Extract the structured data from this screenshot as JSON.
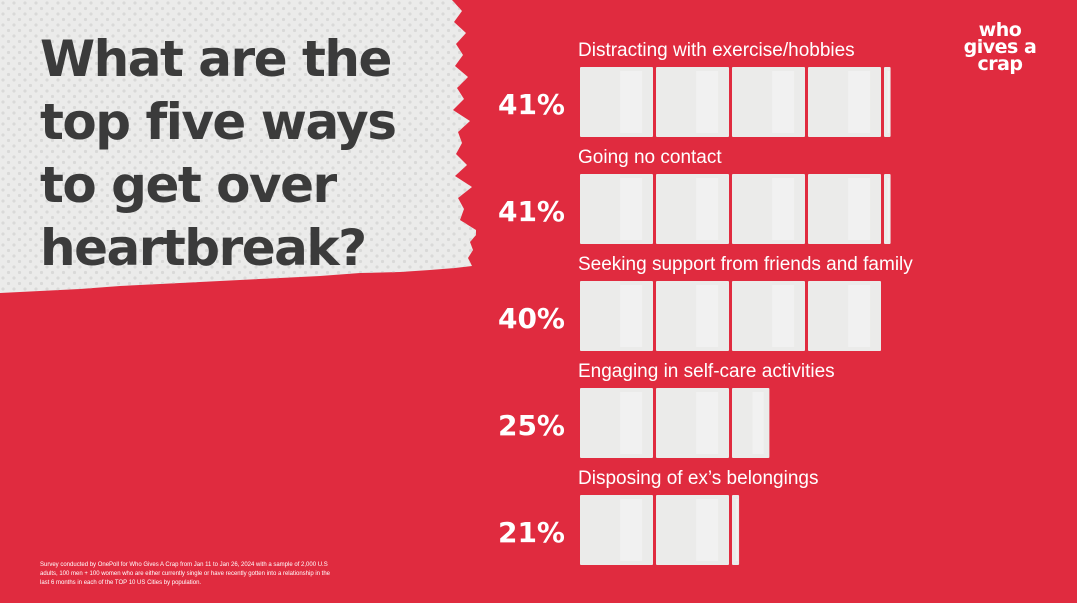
{
  "headline": "What are the top five ways to get over heartbreak?",
  "logo": {
    "line1": "who",
    "line2": "gives a",
    "line3": "crap"
  },
  "footnote": "Survey conducted by OnePoll for Who Gives A Crap from Jan 11 to Jan 26, 2024 with a sample of 2,000 U.S adults, 100 men + 100 women who are either currently single or have recently gotten into a relationship in the last 6 months in each of the TOP 10 US Cities by population.",
  "colors": {
    "background": "#e02b3f",
    "headline": "#3b3b3b",
    "paper": "#ebebea",
    "text": "#ffffff"
  },
  "chart_data": {
    "type": "bar",
    "orientation": "horizontal",
    "title": "What are the top five ways to get over heartbreak?",
    "unit": "%",
    "mark": "toilet-paper-roll",
    "categories": [
      "Distracting with exercise/hobbies",
      "Going no contact",
      "Seeking support from friends and family",
      "Engaging in self-care activities",
      "Disposing of ex’s belongings"
    ],
    "values": [
      41,
      41,
      40,
      25,
      21
    ],
    "value_labels": [
      "41%",
      "41%",
      "40%",
      "25%",
      "21%"
    ]
  }
}
